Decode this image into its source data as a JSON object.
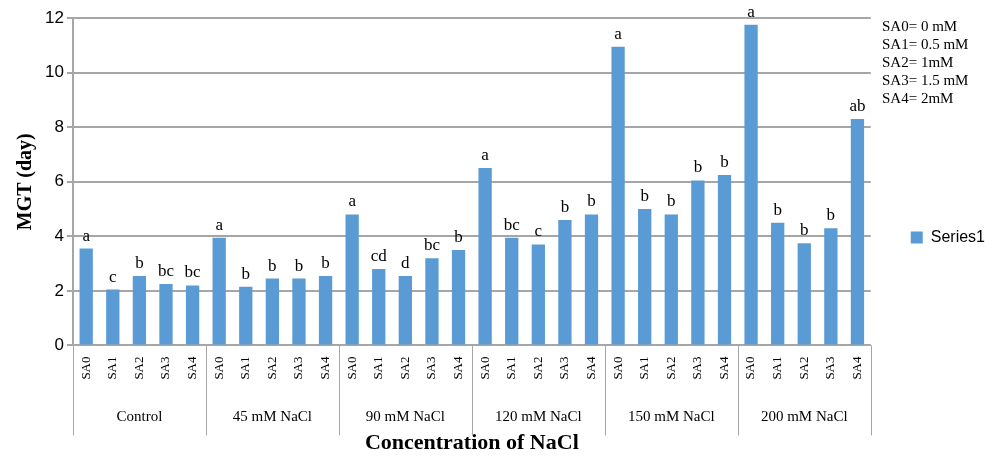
{
  "chart_data": {
    "type": "bar",
    "xlabel": "Concentration of NaCl",
    "ylabel": "MGT (day)",
    "categories": [
      "SA0",
      "SA1",
      "SA2",
      "SA3",
      "SA4",
      "SA0",
      "SA1",
      "SA2",
      "SA3",
      "SA4",
      "SA0",
      "SA1",
      "SA2",
      "SA3",
      "SA4",
      "SA0",
      "SA1",
      "SA2",
      "SA3",
      "SA4",
      "SA0",
      "SA1",
      "SA2",
      "SA3",
      "SA4",
      "SA0",
      "SA1",
      "SA2",
      "SA3",
      "SA4"
    ],
    "series": [
      {
        "name": "Series1",
        "color": "#5b9bd5",
        "values": [
          3.55,
          2.05,
          2.55,
          2.25,
          2.2,
          3.95,
          2.15,
          2.45,
          2.45,
          2.55,
          4.8,
          2.8,
          2.55,
          3.2,
          3.5,
          6.5,
          3.95,
          3.7,
          4.6,
          4.8,
          10.95,
          5.0,
          4.8,
          6.05,
          6.25,
          11.75,
          4.5,
          3.75,
          4.3,
          8.3
        ],
        "value_labels": [
          "a",
          "c",
          "b",
          "bc",
          "bc",
          "a",
          "b",
          "b",
          "b",
          "b",
          "a",
          "cd",
          "d",
          "bc",
          "b",
          "a",
          "bc",
          "c",
          "b",
          "b",
          "a",
          "b",
          "b",
          "b",
          "b",
          "a",
          "b",
          "b",
          "b",
          "ab"
        ]
      }
    ],
    "ylim": [
      0,
      12
    ],
    "yticks": [
      0,
      2,
      4,
      6,
      8,
      10,
      12
    ],
    "grid": "y",
    "legend": "right",
    "annotations": [
      "Control",
      "45 mM NaCl",
      "90 mM NaCl",
      "120 mM NaCl",
      "150 mM NaCl",
      "200 mM NaCl",
      "SA0= 0 mM",
      "SA1= 0.5 mM",
      "SA2= 1mM",
      "SA3= 1.5 mM",
      "SA4= 2mM"
    ]
  }
}
